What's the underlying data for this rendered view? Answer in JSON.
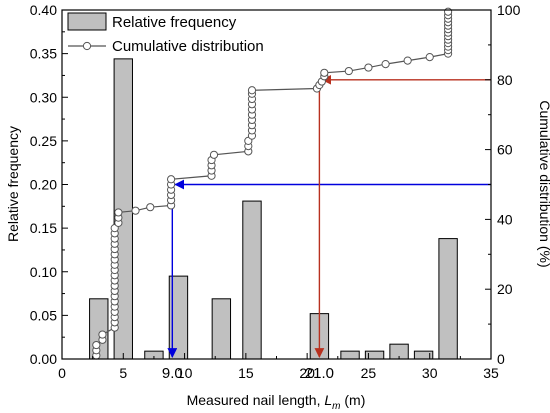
{
  "chart_data": {
    "type": "bar",
    "x_axis": {
      "label_prefix": "Measured nail length, ",
      "label_var": "L",
      "label_sub": "m",
      "label_suffix": " (m)",
      "range": [
        0,
        35
      ],
      "ticks": [
        "0",
        "5",
        "10",
        "15",
        "20",
        "25",
        "30",
        "35"
      ]
    },
    "y_left": {
      "label": "Relative frequency",
      "range": [
        0,
        0.4
      ],
      "ticks": [
        "0.00",
        "0.05",
        "0.10",
        "0.15",
        "0.20",
        "0.25",
        "0.30",
        "0.35",
        "0.40"
      ]
    },
    "y_right": {
      "label": "Cumulative distribution (%)",
      "range": [
        0,
        100
      ],
      "ticks": [
        "0",
        "20",
        "40",
        "60",
        "80",
        "100"
      ]
    },
    "legend": {
      "placement": "top-left",
      "bar_label": "Relative frequency",
      "line_label": "Cumulative distribution"
    },
    "series": [
      {
        "name": "Relative frequency",
        "kind": "bar",
        "bin_width": 1.5,
        "color": "#c0c0c0",
        "points": [
          {
            "x": 3.0,
            "y": 0.069
          },
          {
            "x": 5.0,
            "y": 0.344
          },
          {
            "x": 7.5,
            "y": 0.009
          },
          {
            "x": 9.5,
            "y": 0.095
          },
          {
            "x": 13.0,
            "y": 0.069
          },
          {
            "x": 15.5,
            "y": 0.181
          },
          {
            "x": 21.0,
            "y": 0.052
          },
          {
            "x": 23.5,
            "y": 0.009
          },
          {
            "x": 25.5,
            "y": 0.009
          },
          {
            "x": 27.5,
            "y": 0.017
          },
          {
            "x": 29.5,
            "y": 0.009
          },
          {
            "x": 31.5,
            "y": 0.138
          }
        ]
      },
      {
        "name": "Cumulative distribution",
        "kind": "line",
        "color": "#555555",
        "points": [
          {
            "x": 2.8,
            "y": 1
          },
          {
            "x": 2.8,
            "y": 2.5
          },
          {
            "x": 2.8,
            "y": 4
          },
          {
            "x": 3.3,
            "y": 5.5
          },
          {
            "x": 3.3,
            "y": 7
          },
          {
            "x": 4.3,
            "y": 9
          },
          {
            "x": 4.3,
            "y": 10.5
          },
          {
            "x": 4.3,
            "y": 12
          },
          {
            "x": 4.3,
            "y": 13.5
          },
          {
            "x": 4.3,
            "y": 15
          },
          {
            "x": 4.3,
            "y": 16.5
          },
          {
            "x": 4.3,
            "y": 18
          },
          {
            "x": 4.3,
            "y": 19.5
          },
          {
            "x": 4.3,
            "y": 21
          },
          {
            "x": 4.3,
            "y": 22.5
          },
          {
            "x": 4.3,
            "y": 24
          },
          {
            "x": 4.3,
            "y": 25.5
          },
          {
            "x": 4.3,
            "y": 27
          },
          {
            "x": 4.3,
            "y": 28.5
          },
          {
            "x": 4.3,
            "y": 30
          },
          {
            "x": 4.3,
            "y": 31.5
          },
          {
            "x": 4.3,
            "y": 33
          },
          {
            "x": 4.3,
            "y": 34.5
          },
          {
            "x": 4.3,
            "y": 36
          },
          {
            "x": 4.3,
            "y": 37.5
          },
          {
            "x": 4.6,
            "y": 39
          },
          {
            "x": 4.6,
            "y": 40.5
          },
          {
            "x": 4.6,
            "y": 42
          },
          {
            "x": 6.0,
            "y": 42.5
          },
          {
            "x": 7.2,
            "y": 43.5
          },
          {
            "x": 8.9,
            "y": 44
          },
          {
            "x": 8.9,
            "y": 45.5
          },
          {
            "x": 8.9,
            "y": 47
          },
          {
            "x": 8.9,
            "y": 48.5
          },
          {
            "x": 8.9,
            "y": 50
          },
          {
            "x": 8.9,
            "y": 51.5
          },
          {
            "x": 12.2,
            "y": 52.5
          },
          {
            "x": 12.2,
            "y": 54
          },
          {
            "x": 12.2,
            "y": 55.5
          },
          {
            "x": 12.2,
            "y": 57
          },
          {
            "x": 12.4,
            "y": 58.5
          },
          {
            "x": 15.2,
            "y": 59.5
          },
          {
            "x": 15.2,
            "y": 61
          },
          {
            "x": 15.2,
            "y": 62.5
          },
          {
            "x": 15.5,
            "y": 64
          },
          {
            "x": 15.5,
            "y": 65.5
          },
          {
            "x": 15.5,
            "y": 67
          },
          {
            "x": 15.5,
            "y": 68.5
          },
          {
            "x": 15.5,
            "y": 70
          },
          {
            "x": 15.5,
            "y": 71.5
          },
          {
            "x": 15.5,
            "y": 73
          },
          {
            "x": 15.5,
            "y": 74.5
          },
          {
            "x": 15.5,
            "y": 76
          },
          {
            "x": 15.5,
            "y": 77
          },
          {
            "x": 20.8,
            "y": 77.5
          },
          {
            "x": 21.0,
            "y": 78.5
          },
          {
            "x": 21.2,
            "y": 79.5
          },
          {
            "x": 21.4,
            "y": 81
          },
          {
            "x": 21.4,
            "y": 82
          },
          {
            "x": 23.4,
            "y": 82.5
          },
          {
            "x": 25.0,
            "y": 83.5
          },
          {
            "x": 26.4,
            "y": 84.5
          },
          {
            "x": 28.2,
            "y": 85.5
          },
          {
            "x": 30.0,
            "y": 86.5
          },
          {
            "x": 31.5,
            "y": 87.5
          },
          {
            "x": 31.5,
            "y": 88.5
          },
          {
            "x": 31.5,
            "y": 89.5
          },
          {
            "x": 31.5,
            "y": 90.5
          },
          {
            "x": 31.5,
            "y": 91.5
          },
          {
            "x": 31.5,
            "y": 92.5
          },
          {
            "x": 31.5,
            "y": 93.5
          },
          {
            "x": 31.5,
            "y": 94.5
          },
          {
            "x": 31.5,
            "y": 95.5
          },
          {
            "x": 31.5,
            "y": 96.5
          },
          {
            "x": 31.5,
            "y": 97.5
          },
          {
            "x": 31.5,
            "y": 98.5
          },
          {
            "x": 31.5,
            "y": 99.5
          }
        ]
      }
    ],
    "annotations": [
      {
        "label": "9.0",
        "x": 9.0,
        "cumulative": 50,
        "color": "#0000dd"
      },
      {
        "label": "21.0",
        "x": 21.0,
        "cumulative": 80,
        "color": "#b8311f"
      }
    ]
  }
}
